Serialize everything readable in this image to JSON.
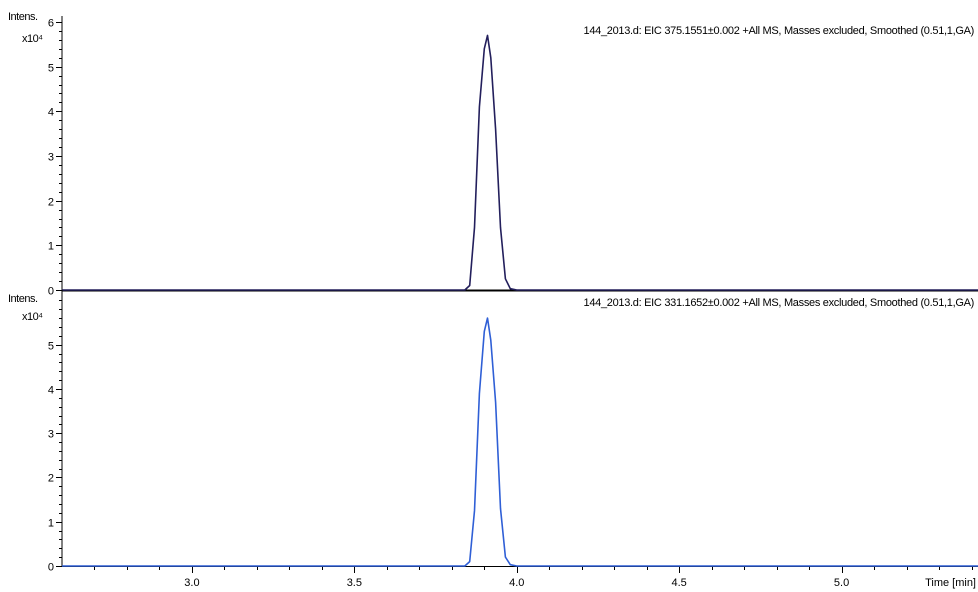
{
  "chart_data": [
    {
      "type": "line",
      "title": "144_2013.d: EIC 375.1551±0.002 +All MS, Masses excluded, Smoothed (0.51,1,GA)",
      "ylabel": "Intens.",
      "y_multiplier": "x10⁴",
      "xlim": [
        2.6,
        5.42
      ],
      "ylim": [
        0,
        6
      ],
      "yticks": [
        0,
        1,
        2,
        3,
        4,
        5,
        6
      ],
      "line_color": "#231f5c",
      "baseline_color": "#000000",
      "series": [
        {
          "x": [
            2.6,
            3.84,
            3.855,
            3.87,
            3.885,
            3.9,
            3.91,
            3.92,
            3.935,
            3.95,
            3.965,
            3.98,
            4.0,
            5.42
          ],
          "values": [
            0,
            0,
            0.1,
            1.4,
            4.1,
            5.4,
            5.7,
            5.2,
            3.6,
            1.4,
            0.25,
            0.03,
            0,
            0
          ]
        }
      ]
    },
    {
      "type": "line",
      "title": "144_2013.d: EIC 331.1652±0.002 +All MS, Masses excluded, Smoothed (0.51,1,GA)",
      "ylabel": "Intens.",
      "y_multiplier": "x10⁴",
      "xlim": [
        2.6,
        5.42
      ],
      "ylim": [
        0,
        6.1
      ],
      "yticks": [
        0,
        1,
        2,
        3,
        4,
        5
      ],
      "xticks": [
        3.0,
        3.5,
        4.0,
        4.5,
        5.0
      ],
      "xtick_labels": [
        "3.0",
        "3.5",
        "4.0",
        "4.5",
        "5.0"
      ],
      "xlabel": "Time [min]",
      "line_color": "#2f5fd6",
      "series": [
        {
          "x": [
            2.6,
            3.84,
            3.855,
            3.87,
            3.885,
            3.9,
            3.91,
            3.92,
            3.935,
            3.95,
            3.965,
            3.98,
            4.0,
            5.42
          ],
          "values": [
            0,
            0,
            0.1,
            1.25,
            3.9,
            5.3,
            5.6,
            5.1,
            3.7,
            1.3,
            0.2,
            0.03,
            0,
            0
          ]
        }
      ]
    }
  ]
}
